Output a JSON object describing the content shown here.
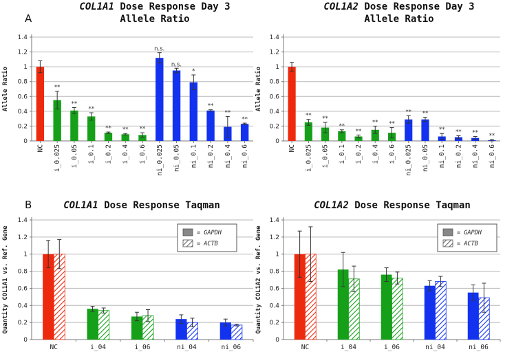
{
  "colors": {
    "red": "#ee2a0e",
    "green": "#16a01a",
    "blue": "#1232f0",
    "grid": "#b8b8b8",
    "axis": "#777777"
  },
  "legend_items": [
    "= GAPDH",
    "= ACTB"
  ],
  "chart_data": [
    {
      "id": "c1",
      "type": "bar",
      "panel_label": "A",
      "title_gene": "COL1A1",
      "title_rest": "Dose Response Day 3",
      "title_line2": "Allele Ratio",
      "ylabel": "Allele Ratio",
      "ylim": [
        0,
        1.4
      ],
      "yticks": [
        "0",
        "0.2",
        "0.4",
        "0.6",
        "0.8",
        "1",
        "1.2",
        "1.4"
      ],
      "grid": true,
      "categories": [
        "NC",
        "i_0.025",
        "i_0.05",
        "i_0.1",
        "i_0.2",
        "i_0.4",
        "i_0.6",
        "ni_0.025",
        "ni_0.05",
        "ni_0.1",
        "ni_0.2",
        "ni_0.4",
        "ni_0.6"
      ],
      "values": [
        1.0,
        0.55,
        0.41,
        0.33,
        0.11,
        0.09,
        0.08,
        1.12,
        0.95,
        0.79,
        0.41,
        0.19,
        0.23
      ],
      "errors": [
        0.08,
        0.12,
        0.04,
        0.05,
        0.01,
        0.01,
        0.03,
        0.07,
        0.03,
        0.1,
        0.01,
        0.14,
        0.01
      ],
      "colors": [
        "red",
        "green",
        "green",
        "green",
        "green",
        "green",
        "green",
        "blue",
        "blue",
        "blue",
        "blue",
        "blue",
        "blue"
      ],
      "annotations": [
        "",
        "**",
        "**",
        "**",
        "**",
        "**",
        "**",
        "n.s.",
        "n.s.",
        "*",
        "**",
        "**",
        "**"
      ]
    },
    {
      "id": "c2",
      "type": "bar",
      "panel_label": "",
      "title_gene": "COL1A2",
      "title_rest": "Dose Response Day 3",
      "title_line2": "Allele Ratio",
      "ylabel": "Allele Ratio",
      "ylim": [
        0,
        1.4
      ],
      "yticks": [
        "0",
        "0.2",
        "0.4",
        "0.6",
        "0.8",
        "1",
        "1.2",
        "1.4"
      ],
      "grid": true,
      "categories": [
        "NC",
        "i_0.025",
        "i_0.05",
        "i_0.1",
        "i_0.2",
        "i_0.4",
        "i_0.6",
        "ni_0.025",
        "ni_0.05",
        "ni_0.1",
        "ni_0.2",
        "ni_0.4",
        "ni_0.6"
      ],
      "values": [
        1.0,
        0.25,
        0.18,
        0.13,
        0.06,
        0.15,
        0.11,
        0.29,
        0.29,
        0.06,
        0.05,
        0.04,
        0.01
      ],
      "errors": [
        0.06,
        0.04,
        0.07,
        0.02,
        0.02,
        0.05,
        0.07,
        0.05,
        0.03,
        0.04,
        0.02,
        0.02,
        0.01
      ],
      "colors": [
        "red",
        "green",
        "green",
        "green",
        "green",
        "green",
        "green",
        "blue",
        "blue",
        "blue",
        "blue",
        "blue",
        "blue"
      ],
      "annotations": [
        "",
        "**",
        "**",
        "**",
        "**",
        "**",
        "**",
        "**",
        "**",
        "**",
        "**",
        "**",
        "**"
      ]
    },
    {
      "id": "c3",
      "type": "bar",
      "panel_label": "B",
      "title_gene": "COL1A1",
      "title_rest": "Dose Response Taqman",
      "title_line2": "",
      "ylabel": "Quantity COL1A1 vs. Ref. Gene",
      "ylim": [
        0,
        1.4
      ],
      "yticks": [
        "0",
        "0.2",
        "0.4",
        "0.6",
        "0.8",
        "1",
        "1.2",
        "1.4"
      ],
      "grid": true,
      "legend": "top-right",
      "categories": [
        "NC",
        "i_04",
        "i_06",
        "ni_04",
        "ni_06"
      ],
      "colors": [
        "red",
        "green",
        "green",
        "blue",
        "blue"
      ],
      "series": [
        {
          "name": "GAPDH",
          "values": [
            1.0,
            0.36,
            0.27,
            0.24,
            0.2
          ],
          "errors": [
            0.16,
            0.03,
            0.05,
            0.05,
            0.04
          ]
        },
        {
          "name": "ACTB",
          "values": [
            1.0,
            0.34,
            0.28,
            0.2,
            0.17
          ],
          "errors": [
            0.17,
            0.03,
            0.07,
            0.05,
            0.01
          ]
        }
      ]
    },
    {
      "id": "c4",
      "type": "bar",
      "panel_label": "",
      "title_gene": "COL1A2",
      "title_rest": "Dose Response Taqman",
      "title_line2": "",
      "ylabel": "Quantity COL1A2 vs. Ref. Gene",
      "ylim": [
        0,
        1.4
      ],
      "yticks": [
        "0",
        "0.2",
        "0.4",
        "0.6",
        "0.8",
        "1",
        "1.2",
        "1.4"
      ],
      "grid": true,
      "legend": "top-right",
      "categories": [
        "NC",
        "i_04",
        "i_06",
        "ni_04",
        "ni_06"
      ],
      "colors": [
        "red",
        "green",
        "green",
        "blue",
        "blue"
      ],
      "series": [
        {
          "name": "GAPDH",
          "values": [
            1.0,
            0.82,
            0.76,
            0.63,
            0.55
          ],
          "errors": [
            0.27,
            0.2,
            0.08,
            0.06,
            0.09
          ]
        },
        {
          "name": "ACTB",
          "values": [
            1.0,
            0.71,
            0.72,
            0.68,
            0.49
          ],
          "errors": [
            0.32,
            0.15,
            0.07,
            0.06,
            0.17
          ]
        }
      ]
    }
  ]
}
